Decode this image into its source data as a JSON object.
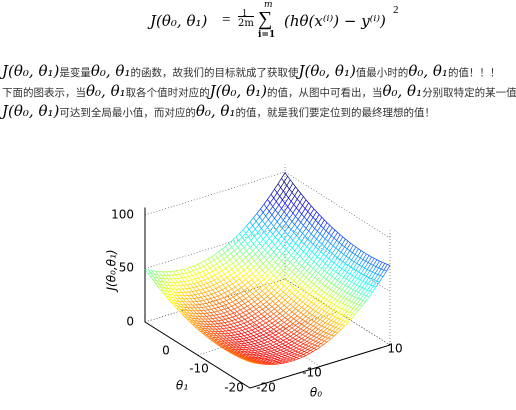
{
  "formula": {
    "lhs": "J(θ₀, θ₁)",
    "eq": "=",
    "frac_num": "1",
    "frac_den": "2m",
    "sum_top": "m",
    "sum_sign": "∑",
    "sum_bottom": "i=1",
    "body": "(hθ(x⁽ⁱ⁾) − y⁽ⁱ⁾)",
    "exp": "2"
  },
  "paragraph": {
    "lines": [
      [
        "J(θ₀, θ₁)",
        "是变量",
        "θ₀, θ₁",
        "的函数，故我们的目标就成了获取使",
        "J(θ₀, θ₁)",
        "值最小时的",
        "θ₀, θ₁",
        "的值！！！"
      ],
      [
        "下面的图表示，当",
        "θ₀, θ₁",
        "取各个值时对应的",
        "J(θ₀, θ₁)",
        "的值，从图中可看出，当",
        "θ₀, θ₁",
        "分别取特定的某一值时，"
      ],
      [
        "J(θ₀, θ₁)",
        "可达到全局最小值，而对应的",
        "θ₀, θ₁",
        "的值，就是我们要定位到的最终理想的值！"
      ]
    ]
  },
  "plot": {
    "z_label": "J(θ₀,θ₁)",
    "z_ticks": [
      "100",
      "50",
      "0"
    ],
    "theta1_label": "θ₁",
    "theta1_ticks": [
      "0",
      "-10",
      "-20"
    ],
    "theta0_label": "θ₀",
    "theta0_ticks": [
      "-20",
      "-10",
      "10"
    ]
  }
}
